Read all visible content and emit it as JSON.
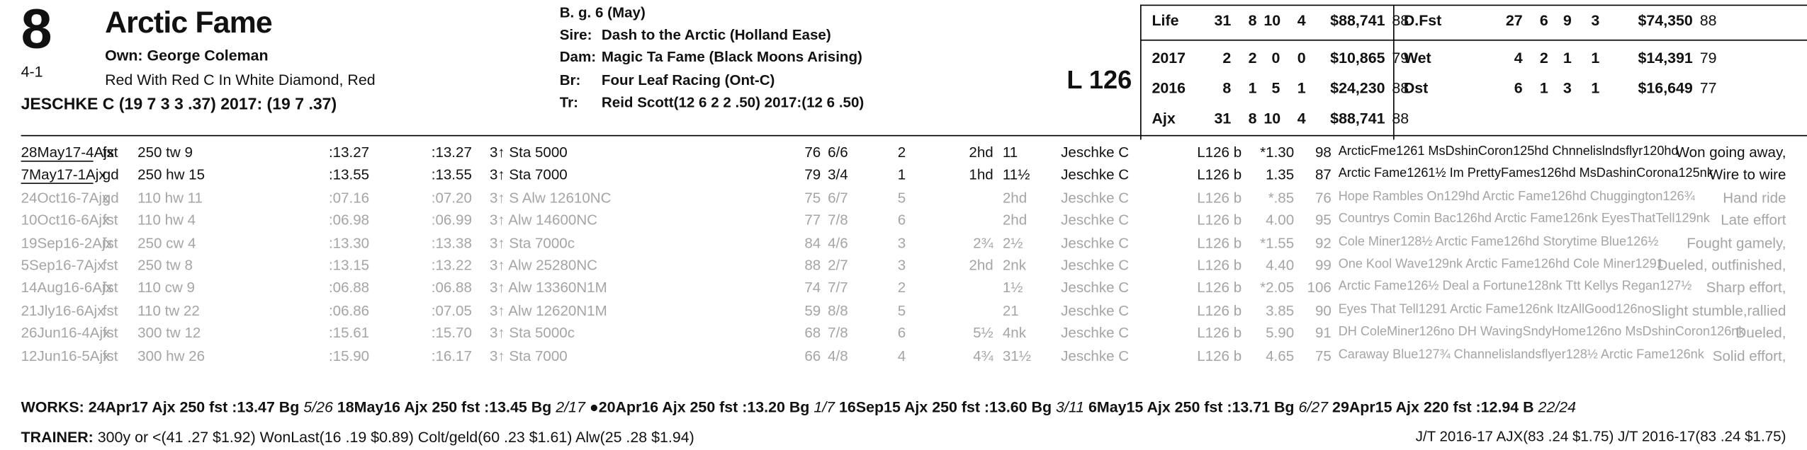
{
  "header": {
    "program_number": "8",
    "horse_name": "Arctic Fame",
    "morning_line": "4-1",
    "owner": "Own: George Coleman",
    "silks": "Red With Red C In White Diamond, Red",
    "jockey": "JESCHKE C (19 7 3 3 .37) 2017: (19 7 .37)",
    "sex_age": "B. g. 6 (May)",
    "sire_label": "Sire:",
    "sire": "Dash to the Arctic (Holland Ease)",
    "dam_label": "Dam:",
    "dam": "Magic Ta Fame (Black Moons Arising)",
    "breeder_label": "Br:",
    "breeder": "Four Leaf Racing (Ont-C)",
    "trainer_label": "Tr:",
    "trainer": "Reid Scott(12 6 2 2 .50) 2017:(12 6 .50)",
    "weight": "L 126"
  },
  "stats_left": [
    {
      "label": "Life",
      "starts": "31",
      "w": "8",
      "p": "10",
      "s": "4",
      "earn": "$88,741",
      "speed": "88"
    },
    {
      "label": "2017",
      "starts": "2",
      "w": "2",
      "p": "0",
      "s": "0",
      "earn": "$10,865",
      "speed": "79"
    },
    {
      "label": "2016",
      "starts": "8",
      "w": "1",
      "p": "5",
      "s": "1",
      "earn": "$24,230",
      "speed": "88"
    },
    {
      "label": "Ajx",
      "starts": "31",
      "w": "8",
      "p": "10",
      "s": "4",
      "earn": "$88,741",
      "speed": "88"
    }
  ],
  "stats_right": [
    {
      "label": "D.Fst",
      "starts": "27",
      "w": "6",
      "p": "9",
      "s": "3",
      "earn": "$74,350",
      "speed": "88"
    },
    {
      "label": "Wet",
      "starts": "4",
      "w": "2",
      "p": "1",
      "s": "1",
      "earn": "$14,391",
      "speed": "79"
    },
    {
      "label": "Dst",
      "starts": "6",
      "w": "1",
      "p": "3",
      "s": "1",
      "earn": "$16,649",
      "speed": "77"
    }
  ],
  "races": [
    {
      "date": "28May17-4Ajx",
      "cond": "fst",
      "dist": "250 tw 9",
      "f1": ":13.27",
      "f2": ":13.27",
      "race": "3↑ Sta 5000",
      "bris": "76",
      "pp": "6/6",
      "st": "2",
      "c1": "2hd",
      "fin": "11",
      "jockey": "Jeschke C",
      "wt": "L126 b",
      "odds": "*1.30",
      "spd": "98",
      "top3": "ArcticFme1261 MsDshinCoron125hd Chnnelislndsflyr120hd",
      "comment": "Won going away,"
    },
    {
      "date": "7May17-1Ajx",
      "cond": "gd",
      "dist": "250 hw 15",
      "f1": ":13.55",
      "f2": ":13.55",
      "race": "3↑ Sta 7000",
      "bris": "79",
      "pp": "3/4",
      "st": "1",
      "c1": "1hd",
      "fin": "11½",
      "jockey": "Jeschke C",
      "wt": "L126 b",
      "odds": "1.35",
      "spd": "87",
      "top3": "Arctic Fame1261½ Im PrettyFames126hd MsDashinCorona125nk",
      "comment": "Wire to wire"
    },
    {
      "date": "24Oct16-7Ajx",
      "cond": "gd",
      "dist": "110 hw 11",
      "f1": ":07.16",
      "f2": ":07.20",
      "race": "3↑ S Alw 12610NC",
      "bris": "75",
      "pp": "6/7",
      "st": "5",
      "c1": "",
      "fin": "2hd",
      "jockey": "Jeschke C",
      "wt": "L126 b",
      "odds": "*.85",
      "spd": "76",
      "top3": "Hope Rambles On129hd Arctic Fame126hd Chuggington126¾",
      "comment": "Hand ride"
    },
    {
      "date": "10Oct16-6Ajx",
      "cond": "fst",
      "dist": "110 hw 4",
      "f1": ":06.98",
      "f2": ":06.99",
      "race": "3↑ Alw 14600NC",
      "bris": "77",
      "pp": "7/8",
      "st": "6",
      "c1": "",
      "fin": "2hd",
      "jockey": "Jeschke C",
      "wt": "L126 b",
      "odds": "4.00",
      "spd": "95",
      "top3": "Countrys Comin Bac126hd Arctic Fame126nk EyesThatTell129nk",
      "comment": "Late effort"
    },
    {
      "date": "19Sep16-2Ajx",
      "cond": "fst",
      "dist": "250 cw 4",
      "f1": ":13.30",
      "f2": ":13.38",
      "race": "3↑ Sta 7000c",
      "bris": "84",
      "pp": "4/6",
      "st": "3",
      "c1": "2¾",
      "fin": "2½",
      "jockey": "Jeschke C",
      "wt": "L126 b",
      "odds": "*1.55",
      "spd": "92",
      "top3": "Cole Miner128½ Arctic Fame126hd Storytime Blue126½",
      "comment": "Fought gamely,"
    },
    {
      "date": "5Sep16-7Ajx",
      "cond": "fst",
      "dist": "250 tw 8",
      "f1": ":13.15",
      "f2": ":13.22",
      "race": "3↑ Alw 25280NC",
      "bris": "88",
      "pp": "2/7",
      "st": "3",
      "c1": "2hd",
      "fin": "2nk",
      "jockey": "Jeschke C",
      "wt": "L126 b",
      "odds": "4.40",
      "spd": "99",
      "top3": "One Kool Wave129nk Arctic Fame126hd Cole Miner1291",
      "comment": "Dueled, outfinished,"
    },
    {
      "date": "14Aug16-6Ajx",
      "cond": "fst",
      "dist": "110 cw 9",
      "f1": ":06.88",
      "f2": ":06.88",
      "race": "3↑ Alw 13360N1M",
      "bris": "74",
      "pp": "7/7",
      "st": "2",
      "c1": "",
      "fin": "1½",
      "jockey": "Jeschke C",
      "wt": "L126 b",
      "odds": "*2.05",
      "spd": "106",
      "top3": "Arctic Fame126½ Deal a Fortune128nk Ttt Kellys Regan127½",
      "comment": "Sharp effort,"
    },
    {
      "date": "21Jly16-6Ajx",
      "cond": "fst",
      "dist": "110 tw 22",
      "f1": ":06.86",
      "f2": ":07.05",
      "race": "3↑ Alw 12620N1M",
      "bris": "59",
      "pp": "8/8",
      "st": "5",
      "c1": "",
      "fin": "21",
      "jockey": "Jeschke C",
      "wt": "L126 b",
      "odds": "3.85",
      "spd": "90",
      "top3": "Eyes That Tell1291 Arctic Fame126nk ItzAllGood126no",
      "comment": "Slight stumble,rallied"
    },
    {
      "date": "26Jun16-4Ajx",
      "cond": "fst",
      "dist": "300 tw 12",
      "f1": ":15.61",
      "f2": ":15.70",
      "race": "3↑ Sta 5000c",
      "bris": "68",
      "pp": "7/8",
      "st": "6",
      "c1": "5½",
      "fin": "4nk",
      "jockey": "Jeschke C",
      "wt": "L126 b",
      "odds": "5.90",
      "spd": "91",
      "top3": "DH ColeMiner126no DH WavingSndyHome126no MsDshinCoron126nk",
      "comment": "Dueled,"
    },
    {
      "date": "12Jun16-5Ajx",
      "cond": "fst",
      "dist": "300 hw 26",
      "f1": ":15.90",
      "f2": ":16.17",
      "race": "3↑ Sta 7000",
      "bris": "66",
      "pp": "4/8",
      "st": "4",
      "c1": "4¾",
      "fin": "31½",
      "jockey": "Jeschke C",
      "wt": "L126 b",
      "odds": "4.65",
      "spd": "75",
      "top3": "Caraway Blue127¾ Channelislandsflyer128½ Arctic Fame126nk",
      "comment": "Solid effort,"
    }
  ],
  "works": {
    "label": "WORKS:",
    "items": [
      {
        "text": "24Apr17 Ajx 250 fst :13.47 Bg",
        "rank": "5/26"
      },
      {
        "text": "18May16 Ajx 250 fst :13.45 Bg",
        "rank": "2/17"
      },
      {
        "text": "●20Apr16 Ajx 250 fst :13.20 Bg",
        "rank": "1/7"
      },
      {
        "text": "16Sep15 Ajx 250 fst :13.60 Bg",
        "rank": "3/11"
      },
      {
        "text": "6May15 Ajx 250 fst :13.71 Bg",
        "rank": "6/27"
      },
      {
        "text": "29Apr15 Ajx 220 fst :12.94 B",
        "rank": "22/24"
      }
    ]
  },
  "trainer_stats": {
    "label": "TRAINER:",
    "text": "300y or <(41 .27 $1.92) WonLast(16 .19 $0.89) Colt/geld(60 .23 $1.61) Alw(25 .28 $1.94)"
  },
  "jt_stats": "J/T 2016-17 AJX(83 .24 $1.75)  J/T 2016-17(83 .24 $1.75)"
}
